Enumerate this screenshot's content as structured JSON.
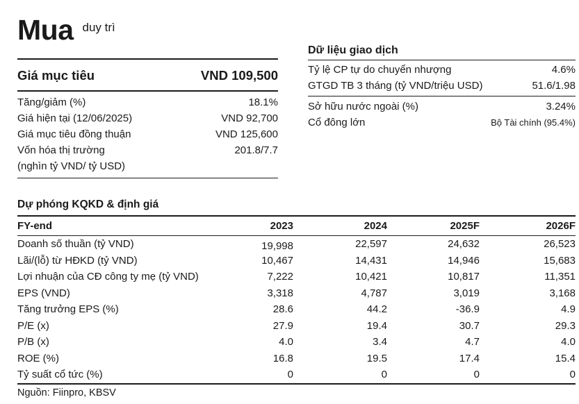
{
  "colors": {
    "text": "#1a1a1a",
    "background": "#ffffff"
  },
  "rating": {
    "action": "Mua",
    "qualifier": "duy trì"
  },
  "target_price": {
    "label": "Giá mục tiêu",
    "value": "VND 109,500"
  },
  "price_summary": {
    "rows": [
      {
        "label": "Tăng/giảm (%)",
        "value": "18.1%"
      },
      {
        "label": "Giá hiện tại (12/06/2025)",
        "value": "VND 92,700"
      },
      {
        "label": "Giá mục tiêu đồng thuận",
        "value": "VND 125,600"
      },
      {
        "label": "Vốn hóa thị trường",
        "value": "201.8/7.7"
      },
      {
        "label": "(nghìn tỷ VND/ tỷ USD)",
        "value": ""
      }
    ]
  },
  "trading_data": {
    "title": "Dữ liệu giao dịch",
    "upper_rows": [
      {
        "label": "Tỷ lệ CP tự do chuyển nhượng",
        "value": "4.6%"
      },
      {
        "label": "GTGD TB 3 tháng (tỷ VND/triệu USD)",
        "value": "51.6/1.98"
      }
    ],
    "lower_rows": [
      {
        "label": "Sở hữu nước ngoài (%)",
        "value": "3.24%"
      },
      {
        "label": "Cổ đông lớn",
        "value": "Bộ Tài chính (95.4%)"
      }
    ]
  },
  "forecast_table": {
    "title": "Dự phóng KQKD & định giá",
    "columns": [
      "FY-end",
      "2023",
      "2024",
      "2025F",
      "2026F"
    ],
    "rows": [
      {
        "label": "Doanh số thuần (tỷ VND)",
        "values": [
          "19,998",
          "22,597",
          "24,632",
          "26,523"
        ]
      },
      {
        "label": "Lãi/(lỗ) từ HĐKD (tỷ VND)",
        "values": [
          "10,467",
          "14,431",
          "14,946",
          "15,683"
        ]
      },
      {
        "label": "Lợi nhuận của CĐ công ty mẹ (tỷ VND)",
        "values": [
          "7,222",
          "10,421",
          "10,817",
          "11,351"
        ]
      },
      {
        "label": "EPS (VND)",
        "values": [
          "3,318",
          "4,787",
          "3,019",
          "3,168"
        ]
      },
      {
        "label": "Tăng trưởng EPS (%)",
        "values": [
          "28.6",
          "44.2",
          "-36.9",
          "4.9"
        ]
      },
      {
        "label": "P/E (x)",
        "values": [
          "27.9",
          "19.4",
          "30.7",
          "29.3"
        ]
      },
      {
        "label": "P/B (x)",
        "values": [
          "4.0",
          "3.4",
          "4.7",
          "4.0"
        ]
      },
      {
        "label": "ROE (%)",
        "values": [
          "16.8",
          "19.5",
          "17.4",
          "15.4"
        ]
      },
      {
        "label": "Tỷ suất cổ tức (%)",
        "values": [
          "0",
          "0",
          "0",
          "0"
        ]
      }
    ],
    "source": "Nguồn: Fiinpro, KBSV"
  }
}
